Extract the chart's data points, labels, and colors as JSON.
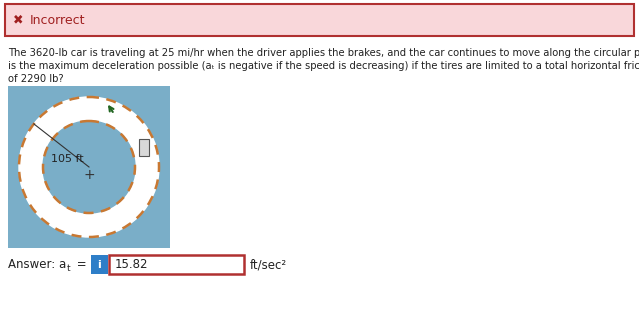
{
  "incorrect_banner_bg": "#f9d7da",
  "incorrect_banner_border": "#b03030",
  "incorrect_x_color": "#a02020",
  "incorrect_text": "Incorrect",
  "question_line1": "The 3620-lb car is traveling at 25 mi/hr when the driver applies the brakes, and the car continues to move along the circular path. What",
  "question_line2": "is the maximum deceleration possible (aₜ is negative if the speed is decreasing) if the tires are limited to a total horizontal friction force",
  "question_line3": "of 2290 lb?",
  "diagram_bg": "#7aaec8",
  "ring_fill": "#ffffff",
  "ring_border_color": "#c87832",
  "center_fill": "#7aaec8",
  "car_fill": "#d8d8d8",
  "car_edge": "#555555",
  "arrow_color": "#226622",
  "label_105": "105 ft",
  "plus_color": "#333333",
  "answer_label1": "Answer: a",
  "answer_label_sub": "t",
  "answer_label2": " =",
  "answer_value": "15.82",
  "answer_units": "ft/sec²",
  "info_bg": "#2e7ec8",
  "info_text": "i",
  "answer_box_border": "#b03030",
  "fig_bg": "#ffffff",
  "text_color": "#222222"
}
